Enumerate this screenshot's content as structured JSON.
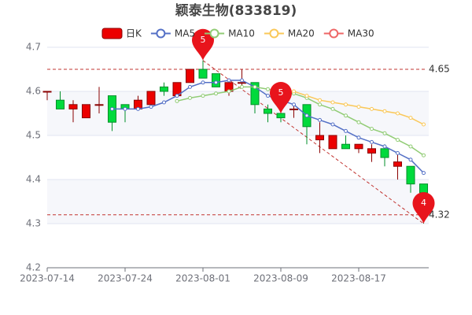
{
  "chart_data": {
    "type": "candlestick",
    "title": "颖泰生物(833819)",
    "categories": [
      "2023-07-14",
      null,
      null,
      null,
      null,
      null,
      "2023-07-24",
      null,
      null,
      null,
      null,
      null,
      "2023-08-01",
      null,
      null,
      null,
      null,
      null,
      "2023-08-09",
      null,
      null,
      null,
      null,
      null,
      "2023-08-17",
      null,
      null,
      null,
      null,
      null
    ],
    "series": [
      {
        "name": "日K",
        "type": "candlestick",
        "up_color": "#ec0000",
        "up_border": "#8a0000",
        "down_color": "#00da3c",
        "down_border": "#008f28",
        "open": [
          4.6,
          4.58,
          4.56,
          4.54,
          4.57,
          4.59,
          4.57,
          4.56,
          4.57,
          4.61,
          4.59,
          4.62,
          4.65,
          4.64,
          4.6,
          4.62,
          4.62,
          4.56,
          4.55,
          4.56,
          4.57,
          4.49,
          4.47,
          4.48,
          4.47,
          4.46,
          4.47,
          4.43,
          4.43,
          4.39
        ],
        "close": [
          4.6,
          4.56,
          4.57,
          4.57,
          4.57,
          4.53,
          4.56,
          4.58,
          4.6,
          4.6,
          4.62,
          4.65,
          4.63,
          4.61,
          4.62,
          4.62,
          4.57,
          4.55,
          4.54,
          4.56,
          4.52,
          4.5,
          4.5,
          4.47,
          4.48,
          4.47,
          4.45,
          4.44,
          4.39,
          4.37
        ],
        "high": [
          4.6,
          4.6,
          4.58,
          4.57,
          4.61,
          4.59,
          4.57,
          4.59,
          4.6,
          4.62,
          4.62,
          4.65,
          4.67,
          4.64,
          4.62,
          4.65,
          4.62,
          4.57,
          4.56,
          4.57,
          4.57,
          4.53,
          4.5,
          4.5,
          4.48,
          4.48,
          4.48,
          4.46,
          4.43,
          4.39
        ],
        "low": [
          4.58,
          4.56,
          4.53,
          4.54,
          4.55,
          4.51,
          4.53,
          4.56,
          4.57,
          4.59,
          4.59,
          4.62,
          4.63,
          4.61,
          4.59,
          4.61,
          4.55,
          4.53,
          4.53,
          4.54,
          4.48,
          4.46,
          4.47,
          4.47,
          4.46,
          4.44,
          4.43,
          4.4,
          4.37,
          4.3
        ]
      },
      {
        "name": "MA5",
        "type": "line",
        "color": "#5470c6",
        "values": [
          null,
          null,
          null,
          null,
          null,
          4.56,
          4.56,
          4.56,
          4.565,
          4.575,
          4.59,
          4.61,
          4.62,
          4.62,
          4.625,
          4.625,
          4.61,
          4.59,
          4.58,
          4.57,
          4.545,
          4.535,
          4.525,
          4.51,
          4.495,
          4.485,
          4.475,
          4.46,
          4.445,
          4.415
        ]
      },
      {
        "name": "MA10",
        "type": "line",
        "color": "#91cc75",
        "values": [
          null,
          null,
          null,
          null,
          null,
          null,
          null,
          null,
          null,
          null,
          4.578,
          4.585,
          4.59,
          4.595,
          4.6,
          4.61,
          4.61,
          4.605,
          4.6,
          4.595,
          4.585,
          4.57,
          4.56,
          4.545,
          4.53,
          4.515,
          4.505,
          4.49,
          4.475,
          4.455
        ]
      },
      {
        "name": "MA20",
        "type": "line",
        "color": "#fac858",
        "values": [
          null,
          null,
          null,
          null,
          null,
          null,
          null,
          null,
          null,
          null,
          null,
          null,
          null,
          null,
          null,
          null,
          null,
          null,
          null,
          4.6,
          4.59,
          4.58,
          4.575,
          4.57,
          4.565,
          4.56,
          4.555,
          4.55,
          4.54,
          4.525
        ]
      },
      {
        "name": "MA30",
        "type": "line",
        "color": "#ee6666",
        "values": [
          null,
          null,
          null,
          null,
          null,
          null,
          null,
          null,
          null,
          null,
          null,
          null,
          null,
          null,
          null,
          null,
          null,
          null,
          null,
          null,
          null,
          null,
          null,
          null,
          null,
          null,
          null,
          null,
          null,
          null
        ]
      }
    ],
    "ref_lines": [
      4.65,
      4.32
    ],
    "ref_color": "#c23531",
    "mark_points": {
      "index": [
        12,
        18,
        29
      ],
      "values": [
        4.67,
        4.55,
        4.3
      ],
      "value_labels": [
        "5",
        "5",
        "4"
      ],
      "color": "#e8141c"
    },
    "ylim": [
      4.2,
      4.7
    ],
    "yticks": [
      4.2,
      4.3,
      4.4,
      4.5,
      4.6,
      4.7
    ],
    "grid": true
  }
}
